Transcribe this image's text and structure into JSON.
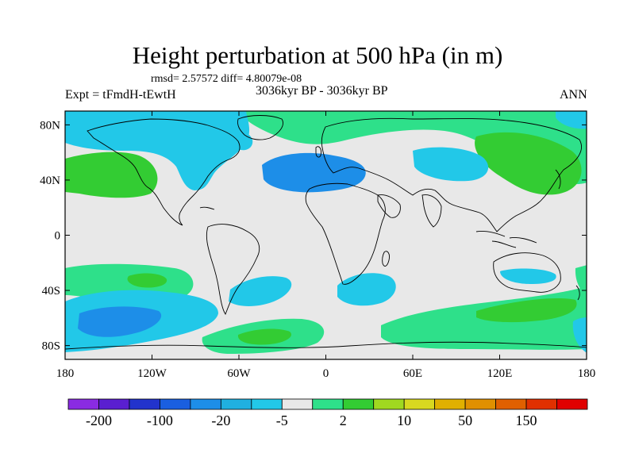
{
  "title": "Height perturbation at 500 hPa (in m)",
  "stats": "rmsd= 2.57572 diff= 4.80079e-08",
  "experiment": "Expt = tFmdH-tEwtH",
  "period": "3036kyr BP - 3036kyr BP",
  "season": "ANN",
  "map": {
    "background_color": "#e8e8e8",
    "lon_range": [
      -180,
      180
    ],
    "lat_range": [
      -90,
      90
    ],
    "y_ticks": [
      "80N",
      "40N",
      "0",
      "40S",
      "80S"
    ],
    "x_ticks": [
      "180",
      "120W",
      "60W",
      "0",
      "60E",
      "120E",
      "180"
    ]
  },
  "colorbar": {
    "colors": [
      "#8a2be2",
      "#5a1fd0",
      "#2233cc",
      "#1a5fe0",
      "#1d8ee8",
      "#20b0e0",
      "#22c8e8",
      "#e8e8e8",
      "#2ee08a",
      "#33cc33",
      "#a0d820",
      "#d8d820",
      "#e0b000",
      "#e09000",
      "#e06000",
      "#e03000",
      "#e00000"
    ],
    "labels": [
      "-200",
      "-100",
      "-20",
      "-5",
      "2",
      "10",
      "50",
      "150"
    ]
  },
  "contour_colors": {
    "light_blue": "#22c8e8",
    "blue": "#1d8ee8",
    "light_green": "#2ee08a",
    "green": "#33cc33"
  }
}
